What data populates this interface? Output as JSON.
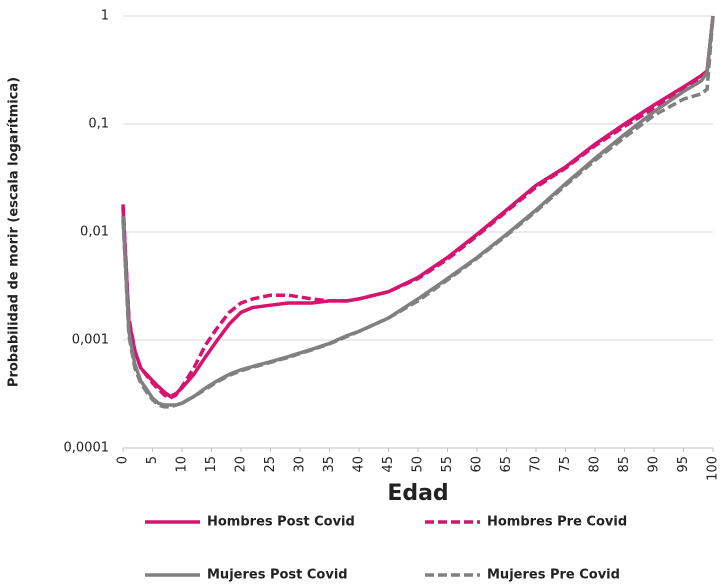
{
  "chart_data": {
    "type": "line",
    "x_label": "Edad",
    "y_label": "Probabilidad de morir (escala logarítmica)",
    "x": [
      0,
      1,
      2,
      3,
      4,
      5,
      6,
      7,
      8,
      9,
      10,
      12,
      14,
      16,
      18,
      20,
      22,
      25,
      28,
      30,
      32,
      35,
      38,
      40,
      45,
      50,
      55,
      60,
      65,
      70,
      75,
      80,
      85,
      90,
      95,
      98,
      99,
      100
    ],
    "xlim": [
      0,
      100
    ],
    "xticks": [
      0,
      5,
      10,
      15,
      20,
      25,
      30,
      35,
      40,
      45,
      50,
      55,
      60,
      65,
      70,
      75,
      80,
      85,
      90,
      95,
      100
    ],
    "ylim": [
      0.0001,
      1
    ],
    "log_y": true,
    "yticks": [
      {
        "value": 0.0001,
        "label": "0,0001"
      },
      {
        "value": 0.001,
        "label": "0,001"
      },
      {
        "value": 0.01,
        "label": "0,01"
      },
      {
        "value": 0.1,
        "label": "0,1"
      },
      1
    ],
    "grid": true,
    "legend": "bottom",
    "series": [
      {
        "name": "Hombres Post Covid",
        "color": "#d6136f",
        "dash": false,
        "values": [
          0.017,
          0.0015,
          0.0008,
          0.00055,
          0.00048,
          0.00042,
          0.00037,
          0.00033,
          0.0003,
          0.00032,
          0.00036,
          0.00048,
          0.0007,
          0.001,
          0.0014,
          0.0018,
          0.002,
          0.0021,
          0.0022,
          0.0022,
          0.0022,
          0.0023,
          0.0023,
          0.0024,
          0.0028,
          0.0038,
          0.0058,
          0.0095,
          0.016,
          0.027,
          0.04,
          0.065,
          0.1,
          0.15,
          0.22,
          0.28,
          0.31,
          1
        ]
      },
      {
        "name": "Hombres Pre Covid",
        "color": "#d6136f",
        "dash": true,
        "values": [
          0.018,
          0.0016,
          0.0008,
          0.00055,
          0.00047,
          0.0004,
          0.00035,
          0.00031,
          0.00029,
          0.00031,
          0.00037,
          0.00055,
          0.0009,
          0.0013,
          0.0018,
          0.0022,
          0.0024,
          0.0026,
          0.0026,
          0.0025,
          0.0024,
          0.0023,
          0.0023,
          0.0024,
          0.0028,
          0.0037,
          0.0056,
          0.0092,
          0.0155,
          0.026,
          0.039,
          0.063,
          0.095,
          0.14,
          0.21,
          0.27,
          0.3,
          1
        ]
      },
      {
        "name": "Mujeres Post Covid",
        "color": "#808080",
        "dash": false,
        "values": [
          0.014,
          0.0012,
          0.0006,
          0.00042,
          0.00035,
          0.00029,
          0.00026,
          0.00025,
          0.00025,
          0.00025,
          0.00026,
          0.0003,
          0.00036,
          0.00042,
          0.00048,
          0.00053,
          0.00057,
          0.00063,
          0.0007,
          0.00076,
          0.00082,
          0.00093,
          0.0011,
          0.0012,
          0.0016,
          0.0024,
          0.0037,
          0.0058,
          0.0095,
          0.016,
          0.028,
          0.048,
          0.08,
          0.13,
          0.2,
          0.25,
          0.3,
          1
        ]
      },
      {
        "name": "Mujeres Pre Covid",
        "color": "#808080",
        "dash": true,
        "values": [
          0.013,
          0.0011,
          0.00055,
          0.0004,
          0.00033,
          0.00028,
          0.00025,
          0.00024,
          0.00024,
          0.00025,
          0.00026,
          0.0003,
          0.00035,
          0.00041,
          0.00047,
          0.00052,
          0.00056,
          0.00062,
          0.00069,
          0.00075,
          0.00081,
          0.00092,
          0.00108,
          0.0012,
          0.0016,
          0.0023,
          0.0036,
          0.0057,
          0.0093,
          0.0155,
          0.027,
          0.046,
          0.075,
          0.12,
          0.17,
          0.19,
          0.21,
          1
        ]
      }
    ]
  }
}
